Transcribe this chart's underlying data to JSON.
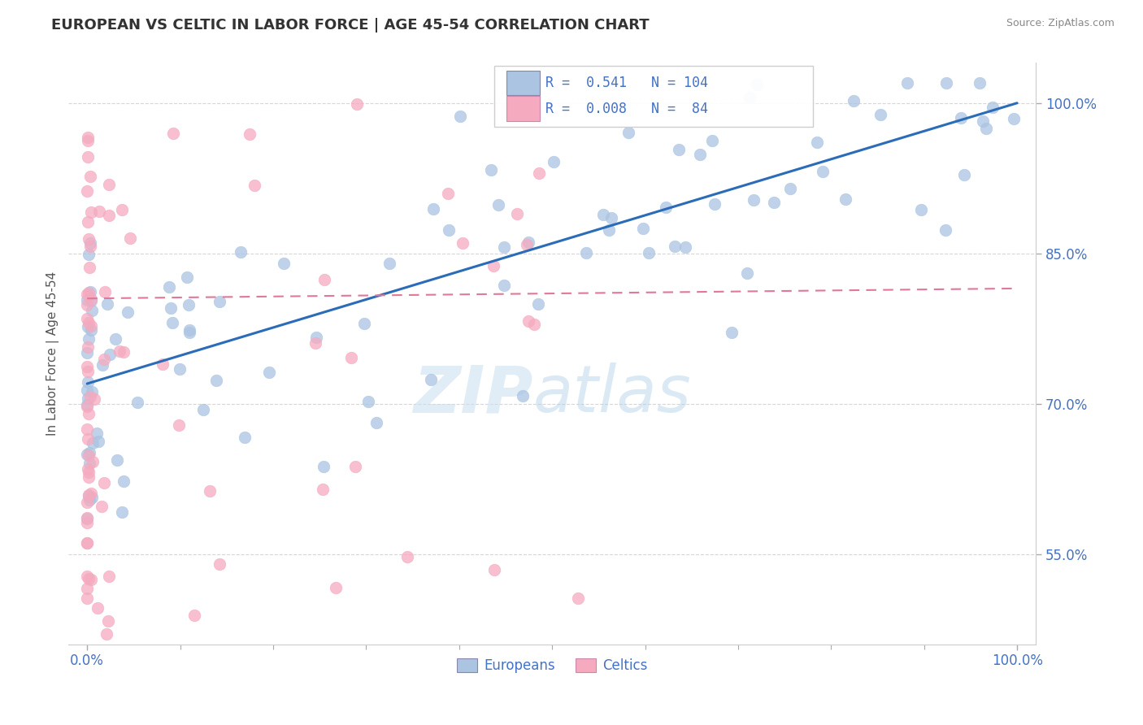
{
  "title": "EUROPEAN VS CELTIC IN LABOR FORCE | AGE 45-54 CORRELATION CHART",
  "source": "Source: ZipAtlas.com",
  "ylabel": "In Labor Force | Age 45-54",
  "xlim": [
    -0.02,
    1.02
  ],
  "ylim": [
    0.46,
    1.04
  ],
  "x_tick_labels": [
    "0.0%",
    "100.0%"
  ],
  "x_ticks": [
    0.0,
    1.0
  ],
  "x_minor_ticks": [
    0.1,
    0.2,
    0.3,
    0.4,
    0.5,
    0.6,
    0.7,
    0.8,
    0.9
  ],
  "y_tick_labels": [
    "55.0%",
    "70.0%",
    "85.0%",
    "100.0%"
  ],
  "y_ticks": [
    0.55,
    0.7,
    0.85,
    1.0
  ],
  "R_european": 0.541,
  "N_european": 104,
  "R_celtic": 0.008,
  "N_celtic": 84,
  "european_color": "#aac4e2",
  "celtic_color": "#f5aabf",
  "trend_european_color": "#2b6cb8",
  "trend_celtic_color": "#e07898",
  "watermark_zip": "ZIP",
  "watermark_atlas": "atlas",
  "eu_trend_x0": 0.0,
  "eu_trend_y0": 0.72,
  "eu_trend_x1": 1.0,
  "eu_trend_y1": 1.0,
  "ce_trend_x0": 0.0,
  "ce_trend_y0": 0.805,
  "ce_trend_x1": 1.0,
  "ce_trend_y1": 0.815
}
